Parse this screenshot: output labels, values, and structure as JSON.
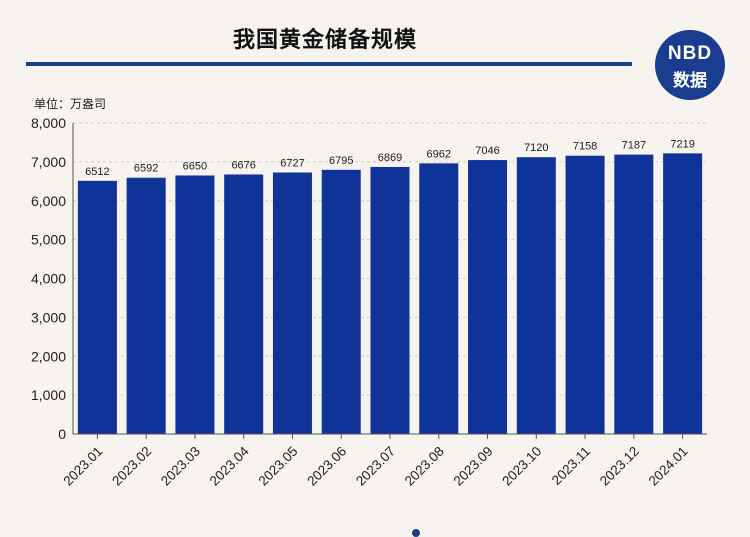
{
  "title": "我国黄金储备规模",
  "unit_label": "单位：万盎司",
  "logo": {
    "top": "NBD",
    "bottom": "数据"
  },
  "colors": {
    "bar": "#0f3399",
    "accent": "#1b3d8f",
    "background": "#f7f3ee"
  },
  "chart_data": {
    "type": "bar",
    "title": "我国黄金储备规模",
    "ylabel": "单位：万盎司",
    "xlabel": "",
    "categories": [
      "2023.01",
      "2023.02",
      "2023.03",
      "2023.04",
      "2023.05",
      "2023.06",
      "2023.07",
      "2023.08",
      "2023.09",
      "2023.10",
      "2023.11",
      "2023.12",
      "2024.01"
    ],
    "values": [
      6512,
      6592,
      6650,
      6676,
      6727,
      6795,
      6869,
      6962,
      7046,
      7120,
      7158,
      7187,
      7219
    ],
    "ylim": [
      0,
      8000
    ],
    "yticks": [
      0,
      1000,
      2000,
      3000,
      4000,
      5000,
      6000,
      7000,
      8000
    ],
    "ytick_labels": [
      "0",
      "1,000",
      "2,000",
      "3,000",
      "4,000",
      "5,000",
      "6,000",
      "7,000",
      "8,000"
    ],
    "grid": true,
    "legend": "none"
  }
}
